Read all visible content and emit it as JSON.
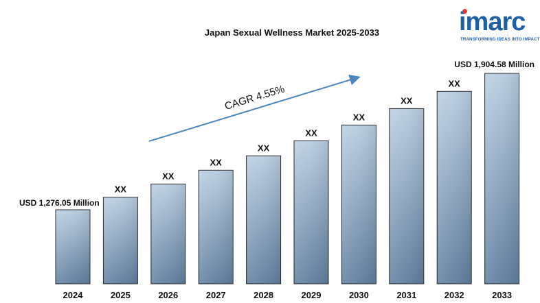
{
  "logo": {
    "word": "imarc",
    "tagline": "TRANSFORMING IDEAS INTO IMPACT",
    "colors": {
      "text": "#1f5fa8",
      "dot": "#e23a3a"
    }
  },
  "chart_data": {
    "type": "bar",
    "title": "Japan Sexual Wellness Market 2025-2033",
    "categories": [
      "2024",
      "2025",
      "2026",
      "2027",
      "2028",
      "2029",
      "2030",
      "2031",
      "2032",
      "2033"
    ],
    "values": [
      1276.05,
      1334.1,
      1394.8,
      1458.3,
      1524.6,
      1594.0,
      1666.5,
      1742.3,
      1821.6,
      1904.58
    ],
    "data_labels": [
      "USD 1,276.05 Million",
      "XX",
      "XX",
      "XX",
      "XX",
      "XX",
      "XX",
      "XX",
      "XX",
      "USD  1,904.58 Million"
    ],
    "annotation": "CAGR  4.55%",
    "xlabel": "",
    "ylabel": "",
    "grid": false,
    "legend": "none",
    "colors": {
      "bar_top": "#b9cde1",
      "bar_bottom": "#5f7e9e",
      "bar_edge": "#2b2b2b",
      "arrow": "#4d87bd"
    }
  }
}
